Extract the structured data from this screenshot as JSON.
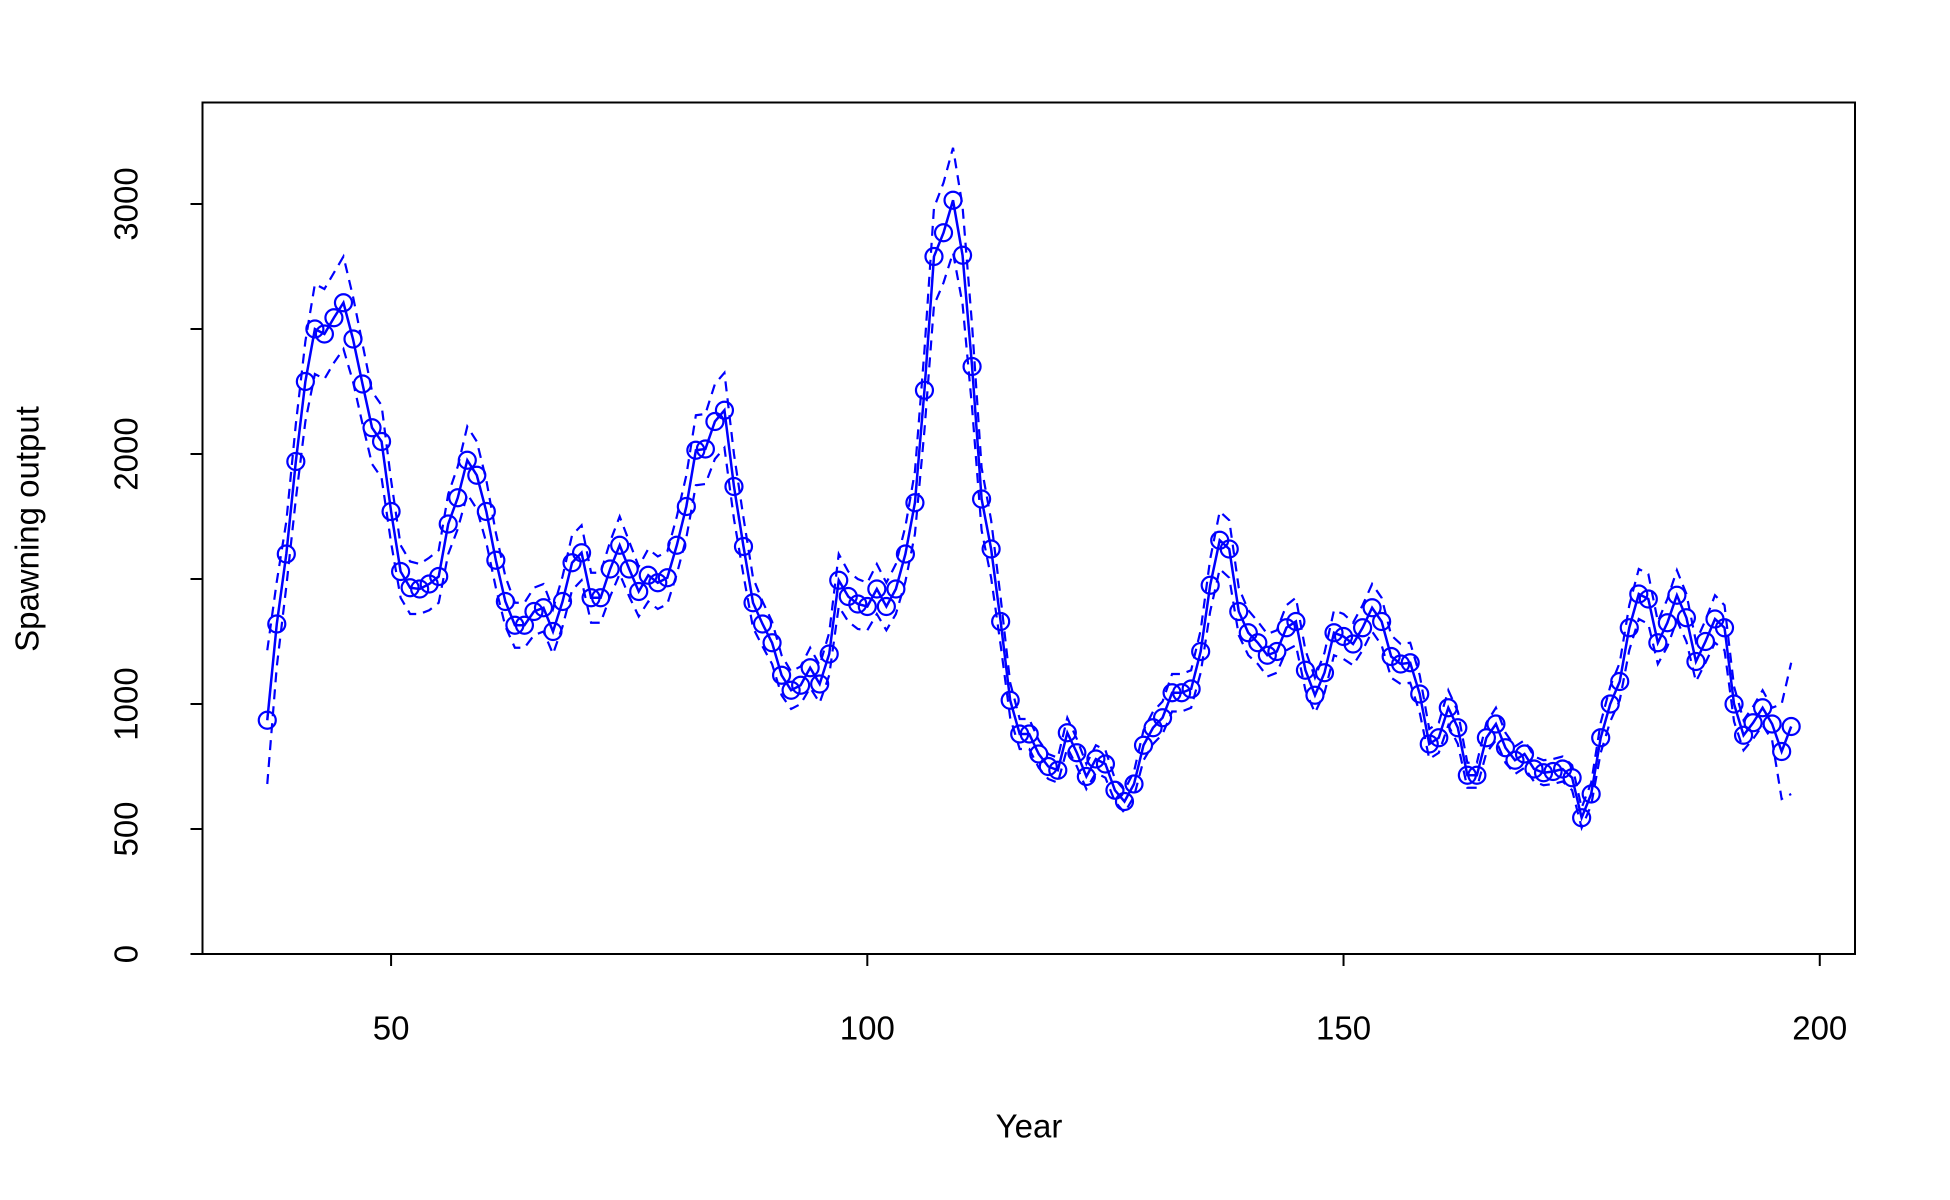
{
  "chart_data": {
    "type": "line",
    "xlabel": "Year",
    "ylabel": "Spawning output",
    "color": "#0000ff",
    "xlim": [
      30.2,
      203.7
    ],
    "xticks": [
      50,
      100,
      150,
      200
    ],
    "ylim": [
      0,
      3406
    ],
    "yticks": [
      0,
      500,
      1000,
      {
        "value": 1500,
        "label": null
      },
      2000,
      {
        "value": 2500,
        "label": null
      },
      3000
    ],
    "x": [
      37,
      38,
      39,
      40,
      41,
      42,
      43,
      44,
      45,
      46,
      47,
      48,
      49,
      50,
      51,
      52,
      53,
      54,
      55,
      56,
      57,
      58,
      59,
      60,
      61,
      62,
      63,
      64,
      65,
      66,
      67,
      68,
      69,
      70,
      71,
      72,
      73,
      74,
      75,
      76,
      77,
      78,
      79,
      80,
      81,
      82,
      83,
      84,
      85,
      86,
      87,
      88,
      89,
      90,
      91,
      92,
      93,
      94,
      95,
      96,
      97,
      98,
      99,
      100,
      101,
      102,
      103,
      104,
      105,
      106,
      107,
      108,
      109,
      110,
      111,
      112,
      113,
      114,
      115,
      116,
      117,
      118,
      119,
      120,
      121,
      122,
      123,
      124,
      125,
      126,
      127,
      128,
      129,
      130,
      131,
      132,
      133,
      134,
      135,
      136,
      137,
      138,
      139,
      140,
      141,
      142,
      143,
      144,
      145,
      146,
      147,
      148,
      149,
      150,
      151,
      152,
      153,
      154,
      155,
      156,
      157,
      158,
      159,
      160,
      161,
      162,
      163,
      164,
      165,
      166,
      167,
      168,
      169,
      170,
      171,
      172,
      173,
      174,
      175,
      176,
      177,
      178,
      179,
      180,
      181,
      182,
      183,
      184,
      185,
      186,
      187,
      188,
      189,
      190,
      191,
      192,
      193,
      194,
      195,
      196,
      197
    ],
    "values": [
      935,
      1320,
      1600,
      1970,
      2290,
      2500,
      2480,
      2545,
      2605,
      2460,
      2280,
      2105,
      2050,
      1770,
      1530,
      1465,
      1460,
      1480,
      1510,
      1720,
      1825,
      1975,
      1915,
      1770,
      1575,
      1410,
      1315,
      1315,
      1370,
      1385,
      1290,
      1410,
      1565,
      1605,
      1425,
      1425,
      1540,
      1635,
      1540,
      1450,
      1515,
      1485,
      1505,
      1635,
      1790,
      2015,
      2020,
      2130,
      2175,
      1870,
      1630,
      1405,
      1320,
      1245,
      1115,
      1055,
      1075,
      1145,
      1080,
      1200,
      1495,
      1430,
      1400,
      1390,
      1460,
      1390,
      1460,
      1600,
      1805,
      2255,
      2790,
      2885,
      3015,
      2795,
      2350,
      1820,
      1620,
      1330,
      1015,
      880,
      880,
      800,
      750,
      735,
      885,
      805,
      710,
      780,
      760,
      655,
      610,
      680,
      835,
      905,
      945,
      1045,
      1045,
      1060,
      1210,
      1475,
      1655,
      1620,
      1370,
      1285,
      1245,
      1195,
      1210,
      1305,
      1330,
      1135,
      1035,
      1125,
      1285,
      1270,
      1240,
      1305,
      1385,
      1330,
      1190,
      1160,
      1165,
      1040,
      840,
      865,
      985,
      905,
      715,
      715,
      865,
      920,
      825,
      775,
      800,
      740,
      725,
      730,
      740,
      705,
      545,
      640,
      865,
      1000,
      1090,
      1305,
      1440,
      1420,
      1245,
      1325,
      1435,
      1345,
      1170,
      1250,
      1340,
      1305,
      1000,
      875,
      925,
      985,
      920,
      810,
      910
    ],
    "lower": [
      680,
      1150,
      1470,
      1820,
      2130,
      2320,
      2300,
      2365,
      2420,
      2290,
      2120,
      1960,
      1905,
      1645,
      1425,
      1360,
      1360,
      1375,
      1405,
      1600,
      1700,
      1840,
      1780,
      1645,
      1465,
      1310,
      1225,
      1225,
      1275,
      1290,
      1200,
      1310,
      1455,
      1495,
      1325,
      1325,
      1430,
      1520,
      1430,
      1350,
      1410,
      1380,
      1400,
      1520,
      1665,
      1875,
      1880,
      1980,
      2025,
      1740,
      1515,
      1305,
      1230,
      1160,
      1035,
      980,
      1000,
      1065,
      1005,
      1115,
      1390,
      1330,
      1300,
      1295,
      1360,
      1295,
      1360,
      1490,
      1680,
      2095,
      2595,
      2685,
      2805,
      2600,
      2185,
      1695,
      1505,
      1235,
      945,
      820,
      820,
      745,
      700,
      685,
      825,
      750,
      660,
      725,
      705,
      610,
      565,
      630,
      775,
      840,
      880,
      970,
      970,
      985,
      1125,
      1370,
      1540,
      1505,
      1275,
      1195,
      1160,
      1110,
      1125,
      1215,
      1235,
      1055,
      965,
      1045,
      1195,
      1180,
      1155,
      1215,
      1290,
      1235,
      1105,
      1080,
      1085,
      965,
      780,
      805,
      915,
      840,
      665,
      665,
      805,
      855,
      765,
      720,
      745,
      690,
      675,
      680,
      690,
      655,
      505,
      595,
      805,
      930,
      1015,
      1215,
      1340,
      1320,
      1160,
      1230,
      1335,
      1250,
      1090,
      1165,
      1245,
      1215,
      930,
      815,
      860,
      915,
      855,
      620,
      640
    ],
    "upper": [
      1215,
      1490,
      1730,
      2120,
      2450,
      2680,
      2660,
      2725,
      2790,
      2630,
      2440,
      2250,
      2195,
      1895,
      1635,
      1570,
      1560,
      1585,
      1615,
      1840,
      1950,
      2110,
      2050,
      1895,
      1685,
      1510,
      1405,
      1405,
      1465,
      1480,
      1380,
      1510,
      1675,
      1715,
      1525,
      1525,
      1650,
      1750,
      1650,
      1550,
      1620,
      1590,
      1610,
      1750,
      1915,
      2155,
      2160,
      2280,
      2325,
      2000,
      1745,
      1505,
      1410,
      1330,
      1195,
      1130,
      1150,
      1225,
      1155,
      1285,
      1600,
      1530,
      1500,
      1485,
      1560,
      1485,
      1560,
      1710,
      1930,
      2415,
      2985,
      3085,
      3225,
      2990,
      2515,
      1945,
      1735,
      1425,
      1085,
      940,
      940,
      855,
      800,
      785,
      945,
      860,
      760,
      835,
      815,
      700,
      655,
      730,
      895,
      970,
      1010,
      1120,
      1120,
      1135,
      1295,
      1580,
      1770,
      1735,
      1465,
      1375,
      1330,
      1280,
      1295,
      1395,
      1425,
      1215,
      1105,
      1205,
      1375,
      1360,
      1325,
      1395,
      1480,
      1425,
      1275,
      1240,
      1245,
      1115,
      900,
      925,
      1055,
      970,
      765,
      765,
      925,
      985,
      885,
      830,
      855,
      790,
      775,
      780,
      790,
      755,
      585,
      685,
      925,
      1070,
      1165,
      1395,
      1540,
      1520,
      1330,
      1420,
      1535,
      1440,
      1250,
      1335,
      1435,
      1395,
      1070,
      935,
      990,
      1055,
      985,
      1000,
      1165
    ]
  }
}
